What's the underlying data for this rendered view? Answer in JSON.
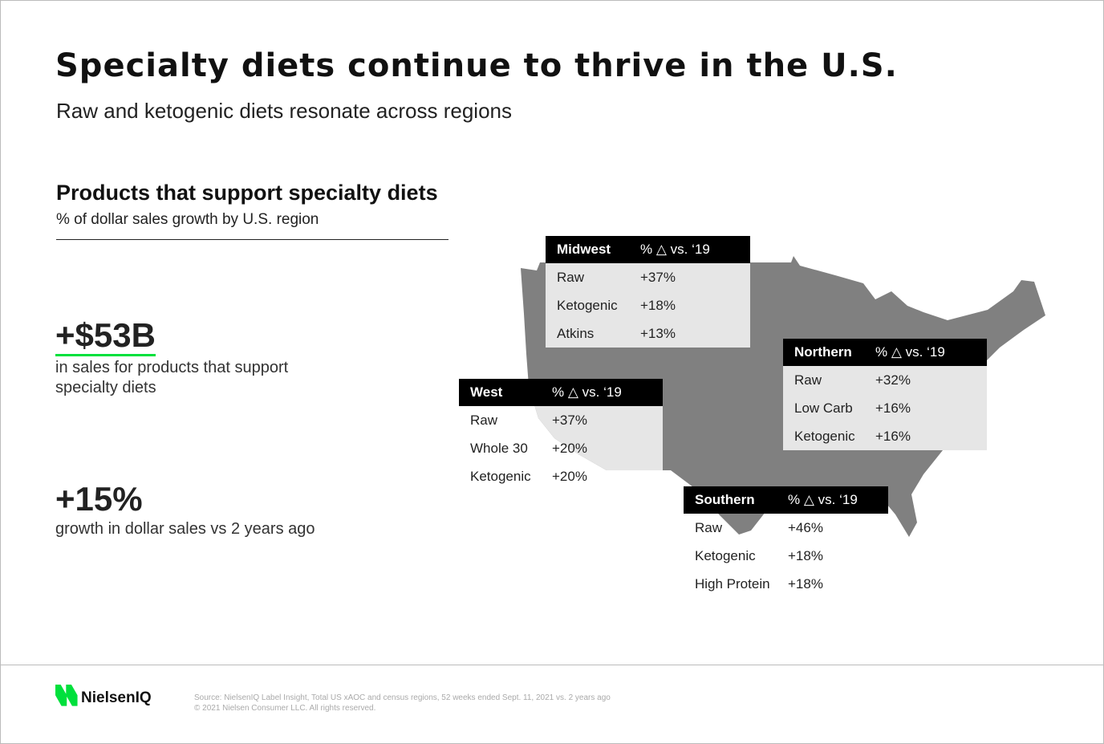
{
  "title": "Specialty diets continue to thrive in the U.S.",
  "subtitle": "Raw and ketogenic diets resonate across regions",
  "section": {
    "title": "Products that support specialty diets",
    "subtitle": "% of dollar sales growth by U.S. region"
  },
  "stats": [
    {
      "value": "+$53B",
      "desc": "in sales for products that support specialty diets"
    },
    {
      "value": "+15%",
      "desc": "growth in dollar sales vs 2 years ago"
    }
  ],
  "colors": {
    "accent": "#00e03c",
    "map": "#808080",
    "map_light": "#e6e6e6"
  },
  "regions": [
    {
      "name": "Midwest",
      "header": "% △ vs. ‘19",
      "rows": [
        [
          "Raw",
          "+37%"
        ],
        [
          "Ketogenic",
          "+18%"
        ],
        [
          "Atkins",
          "+13%"
        ]
      ]
    },
    {
      "name": "West",
      "header": "% △ vs. ‘19",
      "rows": [
        [
          "Raw",
          "+37%"
        ],
        [
          "Whole 30",
          "+20%"
        ],
        [
          "Ketogenic",
          "+20%"
        ]
      ]
    },
    {
      "name": "Northern",
      "header": "% △ vs. ‘19",
      "rows": [
        [
          "Raw",
          "+32%"
        ],
        [
          "Low Carb",
          "+16%"
        ],
        [
          "Ketogenic",
          "+16%"
        ]
      ]
    },
    {
      "name": "Southern",
      "header": "% △ vs. ‘19",
      "rows": [
        [
          "Raw",
          "+46%"
        ],
        [
          "Ketogenic",
          "+18%"
        ],
        [
          "High Protein",
          "+18%"
        ]
      ]
    }
  ],
  "footer": {
    "logo": "NielsenIQ",
    "source": "Source: NielsenIQ Label Insight, Total US xAOC and census regions, 52 weeks ended Sept. 11, 2021 vs. 2 years ago",
    "copyright": "© 2021 Nielsen Consumer LLC. All rights reserved."
  }
}
